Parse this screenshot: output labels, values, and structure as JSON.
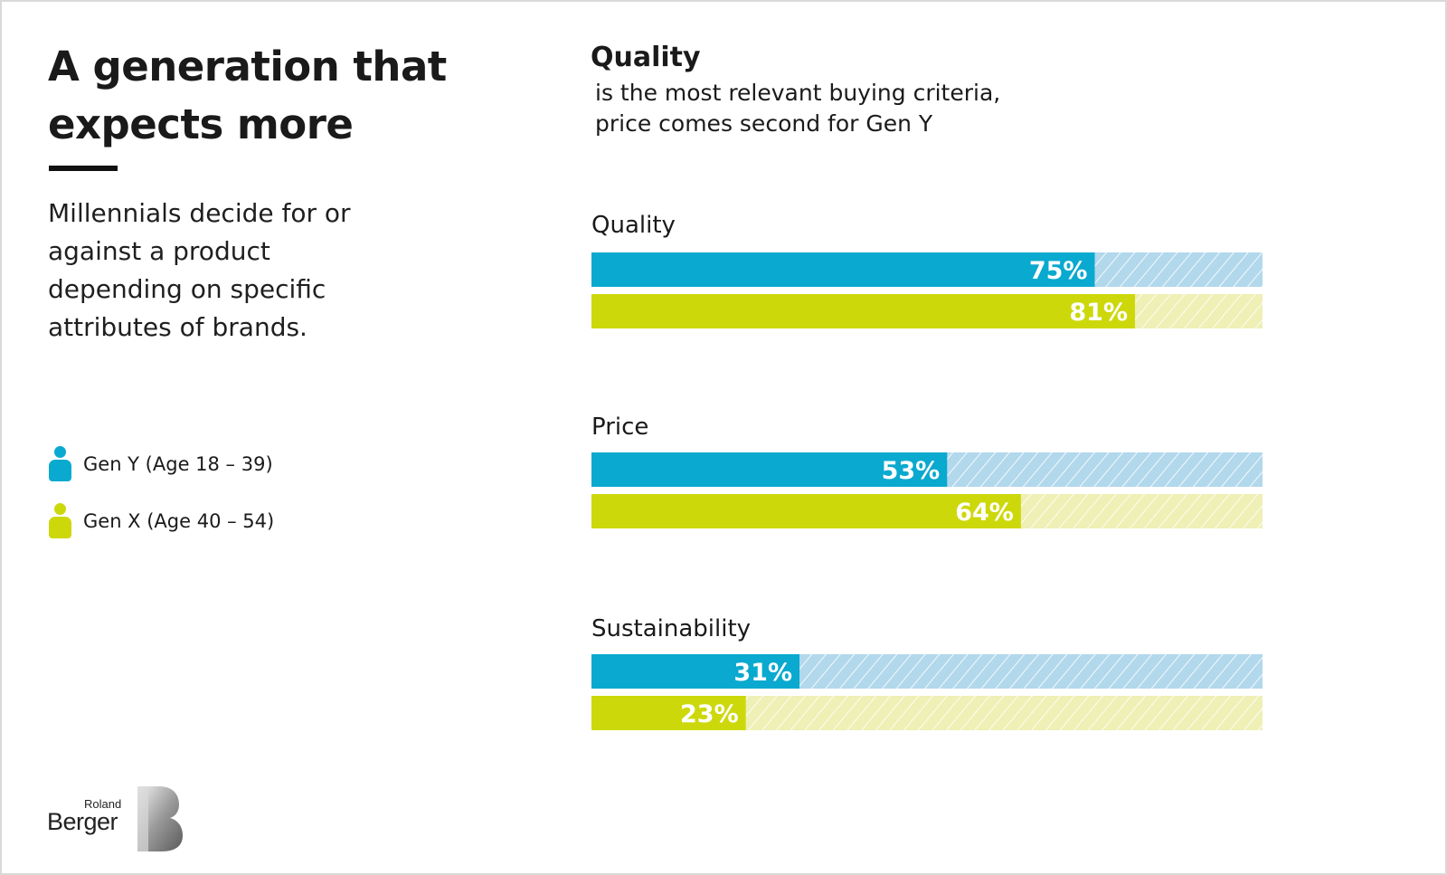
{
  "title_line1": "A generation that",
  "title_line2": "expects more",
  "subtitle": "Millennials decide for or against a product depending on specific attributes of brands.",
  "legend": [
    {
      "label": "Gen Y (Age 18 – 39)",
      "color": "#0aa9cf"
    },
    {
      "label": "Gen X (Age 40 – 54)",
      "color": "#cdd80b"
    }
  ],
  "headline": "Quality",
  "headline_sub_line1": "is the most relevant buying criteria,",
  "headline_sub_line2": "price comes second for Gen Y",
  "logo": {
    "small": "Roland",
    "big": "Berger"
  },
  "colors": {
    "gen_y": "#0aa9cf",
    "gen_y_track": "#b2d8ec",
    "gen_x": "#cdd80b",
    "gen_x_track": "#eef0b5"
  },
  "chart_data": {
    "type": "bar",
    "orientation": "horizontal",
    "categories": [
      "Quality",
      "Price",
      "Sustainability"
    ],
    "series": [
      {
        "name": "Gen Y (Age 18 – 39)",
        "values": [
          75,
          53,
          31
        ]
      },
      {
        "name": "Gen X (Age 40 – 54)",
        "values": [
          81,
          64,
          23
        ]
      }
    ],
    "value_labels": [
      [
        "75%",
        "53%",
        "31%"
      ],
      [
        "81%",
        "64%",
        "23%"
      ]
    ],
    "xlim": [
      0,
      100
    ],
    "unit": "%",
    "grid": false,
    "legend_position": "left"
  }
}
